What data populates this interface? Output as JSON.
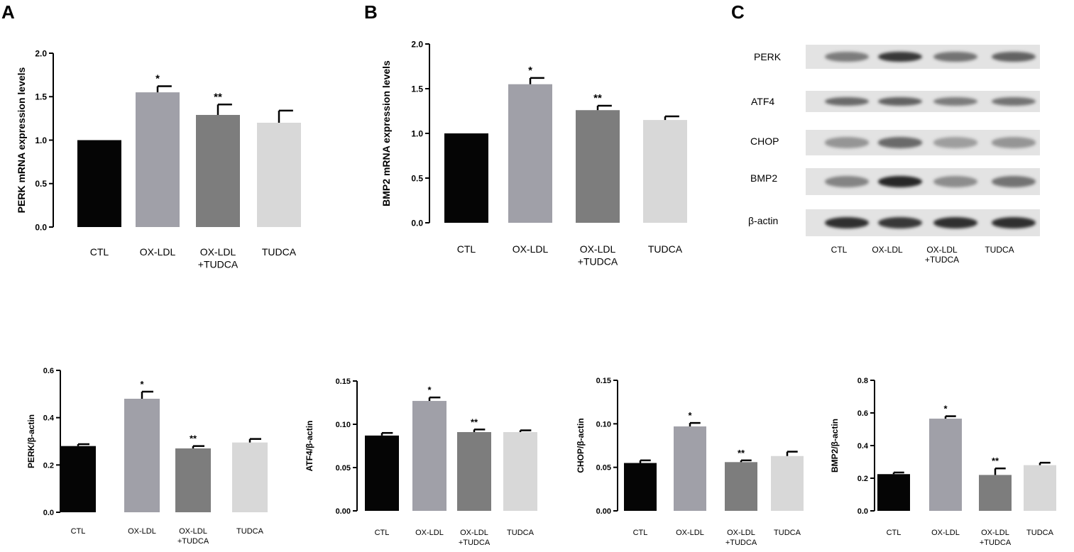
{
  "panels": {
    "a": "A",
    "b": "B",
    "c": "C"
  },
  "colors": {
    "CTL": "#050505",
    "OX-LDL": "#a0a0a8",
    "OX-LDL+TUDCA": "#7d7d7d",
    "TUDCA": "#d8d8d8"
  },
  "chart_data": [
    {
      "id": "A",
      "type": "bar",
      "ylabel": "PERK mRNA expression levels",
      "categories": [
        "CTL",
        "OX-LDL",
        "OX-LDL\n+TUDCA",
        "TUDCA"
      ],
      "values": [
        1.0,
        1.55,
        1.29,
        1.2
      ],
      "errors": [
        0,
        0.07,
        0.12,
        0.14
      ],
      "annotations": [
        "",
        "*",
        "**",
        ""
      ],
      "ylim": [
        0,
        2.0
      ],
      "yticks": [
        "0.0",
        "0.5",
        "1.0",
        "1.5",
        "2.0"
      ]
    },
    {
      "id": "B",
      "type": "bar",
      "ylabel": "BMP2 mRNA expression levels",
      "categories": [
        "CTL",
        "OX-LDL",
        "OX-LDL\n+TUDCA",
        "TUDCA"
      ],
      "values": [
        1.0,
        1.55,
        1.26,
        1.15
      ],
      "errors": [
        0,
        0.07,
        0.05,
        0.04
      ],
      "annotations": [
        "",
        "*",
        "**",
        ""
      ],
      "ylim": [
        0,
        2.0
      ],
      "yticks": [
        "0.0",
        "0.5",
        "1.0",
        "1.5",
        "2.0"
      ]
    },
    {
      "id": "C1",
      "type": "bar",
      "ylabel": "PERK/β-actin",
      "categories": [
        "CTL",
        "OX-LDL",
        "OX-LDL\n+TUDCA",
        "TUDCA"
      ],
      "values": [
        0.28,
        0.48,
        0.27,
        0.295
      ],
      "errors": [
        0.008,
        0.03,
        0.01,
        0.015
      ],
      "annotations": [
        "",
        "*",
        "**",
        ""
      ],
      "ylim": [
        0,
        0.6
      ],
      "yticks": [
        "0.0",
        "0.2",
        "0.4",
        "0.6"
      ]
    },
    {
      "id": "C2",
      "type": "bar",
      "ylabel": "ATF4/β-actin",
      "categories": [
        "CTL",
        "OX-LDL",
        "OX-LDL\n+TUDCA",
        "TUDCA"
      ],
      "values": [
        0.087,
        0.127,
        0.091,
        0.091
      ],
      "errors": [
        0.003,
        0.004,
        0.003,
        0.002
      ],
      "annotations": [
        "",
        "*",
        "**",
        ""
      ],
      "ylim": [
        0,
        0.15
      ],
      "yticks": [
        "0.00",
        "0.05",
        "0.10",
        "0.15"
      ]
    },
    {
      "id": "C3",
      "type": "bar",
      "ylabel": "CHOP/β-actin",
      "categories": [
        "CTL",
        "OX-LDL",
        "OX-LDL\n+TUDCA",
        "TUDCA"
      ],
      "values": [
        0.055,
        0.097,
        0.056,
        0.063
      ],
      "errors": [
        0.003,
        0.004,
        0.002,
        0.005
      ],
      "annotations": [
        "",
        "*",
        "**",
        ""
      ],
      "ylim": [
        0,
        0.15
      ],
      "yticks": [
        "0.00",
        "0.05",
        "0.10",
        "0.15"
      ]
    },
    {
      "id": "C4",
      "type": "bar",
      "ylabel": "BMP2/β-actin",
      "categories": [
        "CTL",
        "OX-LDL",
        "OX-LDL\n+TUDCA",
        "TUDCA"
      ],
      "values": [
        0.225,
        0.565,
        0.22,
        0.28
      ],
      "errors": [
        0.01,
        0.015,
        0.04,
        0.015
      ],
      "annotations": [
        "",
        "*",
        "**",
        ""
      ],
      "ylim": [
        0,
        0.8
      ],
      "yticks": [
        "0.0",
        "0.2",
        "0.4",
        "0.6",
        "0.8"
      ]
    }
  ],
  "blot": {
    "rows": [
      "PERK",
      "ATF4",
      "CHOP",
      "BMP2",
      "β-actin"
    ],
    "lanes": [
      "CTL",
      "OX-LDL",
      "OX-LDL\n+TUDCA",
      "TUDCA"
    ],
    "intensity": [
      [
        0.45,
        0.85,
        0.5,
        0.6
      ],
      [
        0.55,
        0.6,
        0.45,
        0.5
      ],
      [
        0.3,
        0.55,
        0.25,
        0.3
      ],
      [
        0.4,
        0.95,
        0.35,
        0.5
      ],
      [
        0.9,
        0.85,
        0.9,
        0.9
      ]
    ]
  }
}
